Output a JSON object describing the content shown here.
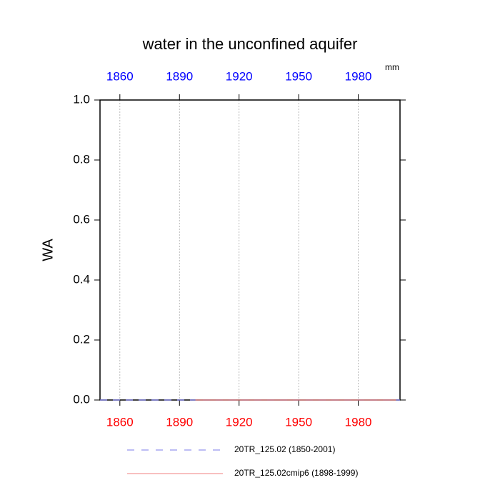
{
  "chart_data": {
    "type": "line",
    "title": "water in the unconfined aquifer",
    "units": "mm",
    "ylabel": "WA",
    "xlim": [
      1850,
      2001
    ],
    "xticks": [
      1860,
      1890,
      1920,
      1950,
      1980
    ],
    "top_tick_color": "#0000ff",
    "bottom_tick_color": "#ff0000",
    "ylim": [
      0,
      1
    ],
    "yticks": [
      {
        "value": 0,
        "label": "0.0"
      },
      0.2,
      0.4,
      0.6,
      0.8,
      {
        "value": 1,
        "label": "1.0"
      }
    ],
    "grid": true,
    "series": [
      {
        "name": "20TR_125.02 (1850-2001)",
        "color": "#7b7bea",
        "dash": true,
        "x": [
          1850,
          2001
        ],
        "values": [
          0,
          0
        ]
      },
      {
        "name": "20TR_125.02cmip6 (1898-1999)",
        "color": "#f08080",
        "dash": false,
        "x": [
          1898,
          1999
        ],
        "values": [
          0,
          0
        ]
      }
    ]
  }
}
